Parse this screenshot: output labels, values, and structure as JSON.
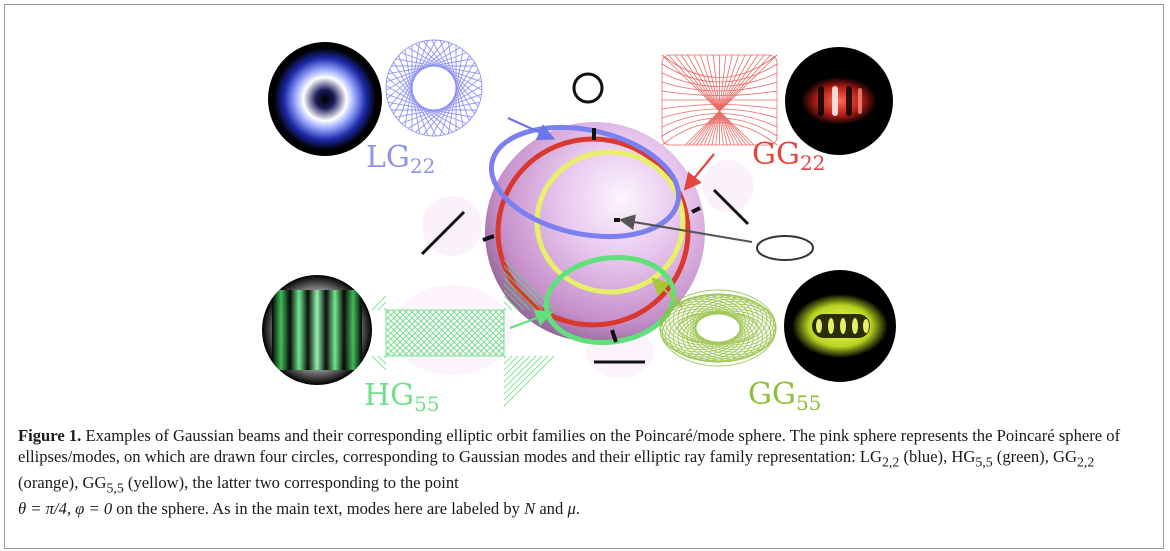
{
  "figure": {
    "labels": {
      "lg_base": "LG",
      "lg_sub": "22",
      "gg_top_base": "GG",
      "gg_top_sub": "22",
      "hg_base": "HG",
      "hg_sub": "55",
      "gg_bot_base": "GG",
      "gg_bot_sub": "55"
    },
    "colors": {
      "lg": "#7b7ff0",
      "gg22": "#e4463f",
      "hg": "#5fe07a",
      "gg55": "#8fbf3a",
      "yellow": "#e8f06a",
      "sphere_light": "#f6e8fb",
      "sphere_dark": "#8a5a88"
    }
  },
  "caption": {
    "label": "Figure 1.",
    "s1": " Examples of Gaussian beams and their corresponding elliptic orbit families on the Poincaré/mode sphere. The pink sphere represents the Poincaré sphere of ellipses/modes, on which are drawn four circles, corresponding to Gaussian modes and their elliptic ray family representation: LG",
    "sub_lg": "2,2",
    "t_blue": " (blue), HG",
    "sub_hg": "5,5",
    "t_green": " (green), GG",
    "sub_gg1": "2,2",
    "t_orange": " (orange), GG",
    "sub_gg2": "5,5",
    "t_yellow": " (yellow), the latter two corresponding to the point",
    "theta": "θ = π/4, φ = 0",
    "t_rest": " on the sphere. As in the main text, modes here are labeled by ",
    "N": "N",
    "and": " and ",
    "mu": "μ",
    "end": "."
  }
}
